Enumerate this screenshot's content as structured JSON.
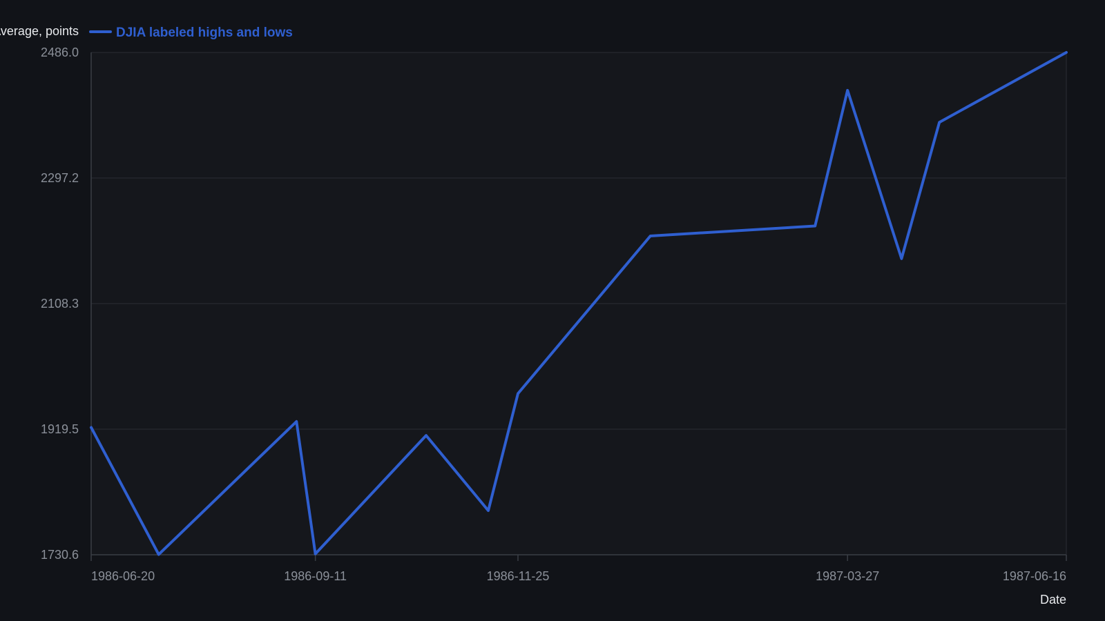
{
  "colors": {
    "background": "#111318",
    "plot_background": "#15171c",
    "series": "#2f5fd0",
    "grid": "#2a2d33",
    "axis": "#3a3e45",
    "tick_text": "#8b9099",
    "title_text": "#e8eaed"
  },
  "chart_data": {
    "type": "line",
    "title": "",
    "xlabel": "Date",
    "ylabel": "Dow Jones Industrial Average, points",
    "legend": {
      "placement": "top-left",
      "entries": [
        "DJIA labeled highs and lows"
      ]
    },
    "grid": true,
    "ylim": [
      1730.6,
      2486.0
    ],
    "xlim": [
      "1986-06-20",
      "1987-06-16"
    ],
    "x_ticks": [
      "1986-06-20",
      "1986-09-11",
      "1986-11-25",
      "1987-03-27",
      "1987-06-16"
    ],
    "y_ticks": [
      "1730.6",
      "1919.5",
      "2108.3",
      "2297.2",
      "2486.0"
    ],
    "series": [
      {
        "name": "DJIA labeled highs and lows",
        "color": "#2f5fd0",
        "points": [
          {
            "x": "1986-06-20",
            "y": 1922
          },
          {
            "x": "1986-07-15",
            "y": 1731
          },
          {
            "x": "1986-09-04",
            "y": 1931
          },
          {
            "x": "1986-09-11",
            "y": 1732
          },
          {
            "x": "1986-10-22",
            "y": 1910
          },
          {
            "x": "1986-11-14",
            "y": 1797
          },
          {
            "x": "1986-11-25",
            "y": 1973
          },
          {
            "x": "1987-01-13",
            "y": 2210
          },
          {
            "x": "1987-03-15",
            "y": 2225
          },
          {
            "x": "1987-03-27",
            "y": 2429
          },
          {
            "x": "1987-04-16",
            "y": 2176
          },
          {
            "x": "1987-04-30",
            "y": 2381
          },
          {
            "x": "1987-06-16",
            "y": 2486
          }
        ]
      }
    ]
  }
}
